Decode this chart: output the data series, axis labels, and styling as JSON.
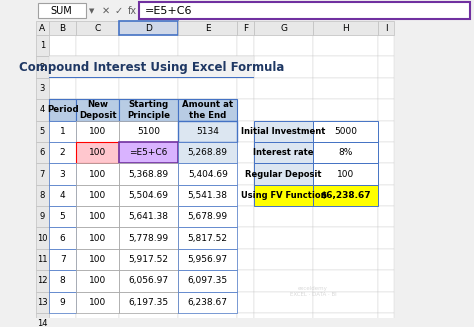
{
  "title": "Compound Interest Using Excel Formula",
  "formula_bar_text": "=E5+C6",
  "col_headers": [
    "A",
    "B",
    "C",
    "D",
    "E",
    "F",
    "G",
    "H",
    "I"
  ],
  "row_headers": [
    "1",
    "2",
    "3",
    "4",
    "5",
    "6",
    "7",
    "8",
    "9",
    "10",
    "11",
    "12",
    "13",
    "14"
  ],
  "main_table_headers": [
    "Period",
    "New\nDeposit",
    "Starting\nPrinciple",
    "Amount at\nthe End"
  ],
  "main_table_data": [
    [
      1,
      100,
      5100,
      5134
    ],
    [
      2,
      100,
      "=E5+C6",
      5268.89
    ],
    [
      3,
      100,
      5368.89,
      5404.69
    ],
    [
      4,
      100,
      5504.69,
      5541.38
    ],
    [
      5,
      100,
      5641.38,
      5678.99
    ],
    [
      6,
      100,
      5778.99,
      5817.52
    ],
    [
      7,
      100,
      5917.52,
      5956.97
    ],
    [
      8,
      100,
      6056.97,
      6097.35
    ],
    [
      9,
      100,
      6197.35,
      6238.67
    ]
  ],
  "side_table_data": [
    [
      "Initial Investment",
      "5000"
    ],
    [
      "Interest rate",
      "8%"
    ],
    [
      "Regular Deposit",
      "100"
    ],
    [
      "Using FV Function",
      "$6,238.67"
    ]
  ],
  "header_bg": "#b8cce4",
  "cell_bg_white": "#ffffff",
  "cell_bg_pink": "#ffc7ce",
  "cell_bg_purple": "#d9b3ff",
  "cell_bg_blue_highlight": "#dce6f1",
  "side_yellow_bg": "#ffff00",
  "side_header_bg": "#dce6f1",
  "formula_bar_border": "#7030a0",
  "excel_bg": "#f0f0f0",
  "col_header_bg": "#e8e8e8",
  "row_header_bg": "#e8e8e8",
  "grid_color": "#c0c0c0",
  "title_row_bg": "#f2f2f2"
}
